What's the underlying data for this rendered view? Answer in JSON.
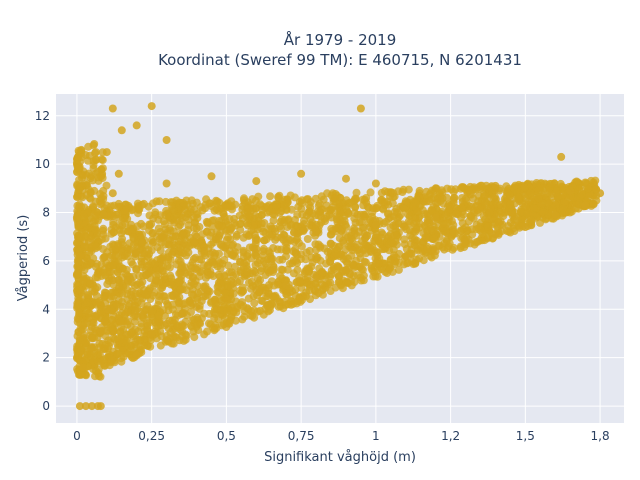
{
  "chart_data": {
    "type": "scatter",
    "title_line1": "År 1979 - 2019",
    "title_line2": "Koordinat (Sweref 99 TM): E 460715, N 6201431",
    "xlabel": "Signifikant våghöjd (m)",
    "ylabel": "Vågperiod (s)",
    "xlim": [
      -0.07,
      1.83
    ],
    "ylim": [
      -0.7,
      12.9
    ],
    "x_ticks": [
      0,
      0.25,
      0.5,
      0.75,
      1,
      1.25,
      1.5,
      1.75
    ],
    "x_tick_labels": [
      "0",
      "0,25",
      "0,5",
      "0,75",
      "1",
      "1,2",
      "1,5",
      "1,8"
    ],
    "y_ticks": [
      0,
      2,
      4,
      6,
      8,
      10,
      12
    ],
    "y_tick_labels": [
      "0",
      "2",
      "4",
      "6",
      "8",
      "10",
      "12"
    ],
    "grid": true,
    "marker_color": "#d4a51e",
    "series": [
      {
        "points": [
          [
            0.01,
            0.0
          ],
          [
            0.03,
            0.0
          ],
          [
            0.05,
            0.0
          ],
          [
            0.07,
            0.0
          ],
          [
            0.08,
            0.0
          ],
          [
            0.02,
            1.6
          ],
          [
            0.05,
            2.4
          ],
          [
            0.08,
            3.1
          ],
          [
            0.1,
            4.0
          ],
          [
            0.12,
            5.2
          ],
          [
            0.04,
            6.8
          ],
          [
            0.09,
            7.9
          ],
          [
            0.12,
            8.8
          ],
          [
            0.14,
            9.6
          ],
          [
            0.1,
            10.5
          ],
          [
            0.15,
            11.4
          ],
          [
            0.12,
            12.3
          ],
          [
            0.25,
            12.4
          ],
          [
            0.2,
            11.6
          ],
          [
            0.3,
            11.0
          ],
          [
            0.2,
            2.1
          ],
          [
            0.25,
            3.0
          ],
          [
            0.3,
            3.4
          ],
          [
            0.35,
            3.8
          ],
          [
            0.4,
            4.1
          ],
          [
            0.5,
            4.4
          ],
          [
            0.6,
            4.8
          ],
          [
            0.7,
            5.0
          ],
          [
            0.8,
            5.3
          ],
          [
            0.9,
            5.6
          ],
          [
            1.0,
            5.9
          ],
          [
            1.1,
            6.2
          ],
          [
            1.2,
            6.4
          ],
          [
            1.3,
            6.8
          ],
          [
            1.4,
            7.1
          ],
          [
            1.5,
            7.4
          ],
          [
            1.6,
            7.9
          ],
          [
            1.7,
            8.3
          ],
          [
            1.75,
            8.8
          ],
          [
            1.65,
            8.9
          ],
          [
            0.3,
            9.2
          ],
          [
            0.45,
            9.5
          ],
          [
            0.6,
            9.3
          ],
          [
            0.75,
            9.6
          ],
          [
            0.9,
            9.4
          ],
          [
            1.0,
            9.2
          ],
          [
            1.2,
            9.0
          ],
          [
            1.4,
            9.1
          ],
          [
            1.62,
            10.3
          ],
          [
            0.95,
            12.3
          ],
          [
            0.4,
            7.0
          ],
          [
            0.6,
            6.5
          ],
          [
            0.8,
            7.2
          ],
          [
            1.0,
            7.5
          ],
          [
            1.2,
            7.8
          ]
        ]
      }
    ]
  }
}
